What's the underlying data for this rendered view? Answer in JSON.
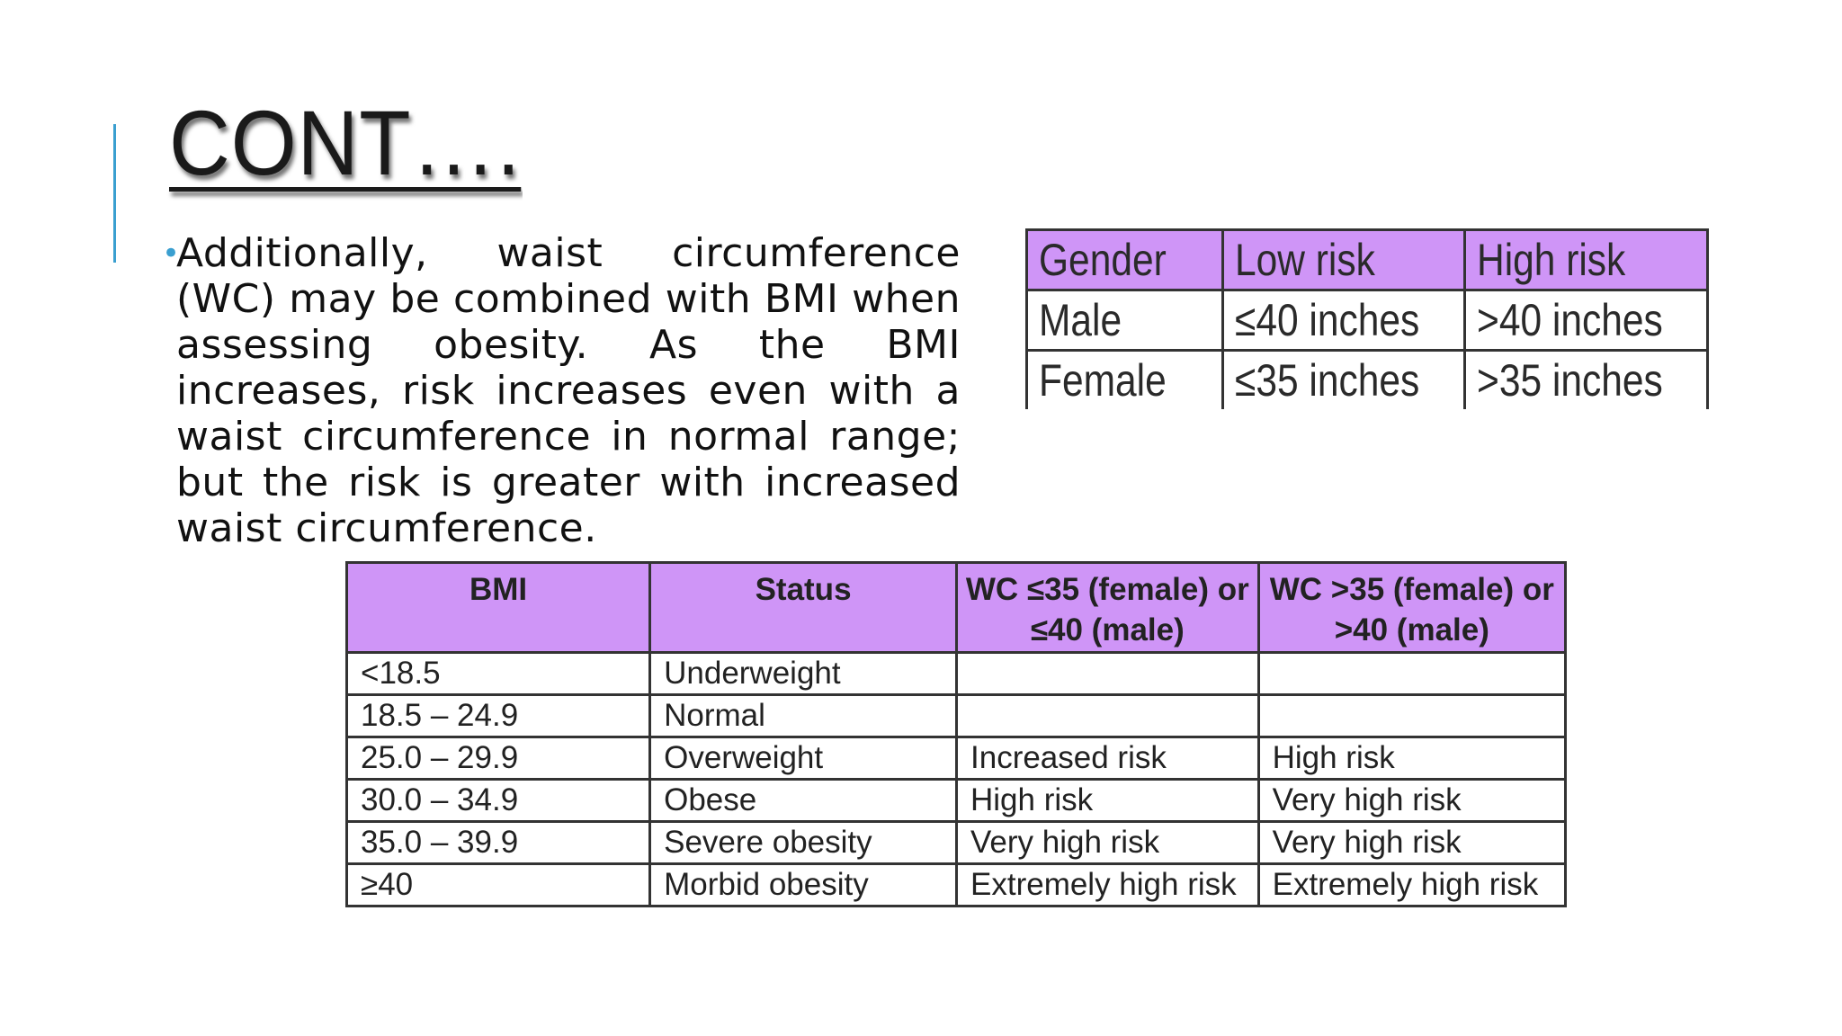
{
  "slide": {
    "title": "CONT….",
    "bullet": "Additionally, waist circumference (WC) may be combined with BMI when assessing obesity. As the BMI increases, risk increases even with a waist circumference in normal range; but the risk is greater with increased waist circumference."
  },
  "gender_table": {
    "headers": [
      "Gender",
      "Low risk",
      "High risk"
    ],
    "rows": [
      [
        "Male",
        "≤40 inches",
        ">40 inches"
      ],
      [
        "Female",
        "≤35 inches",
        ">35 inches"
      ]
    ]
  },
  "bmi_table": {
    "headers": [
      "BMI",
      "Status",
      "WC ≤35 (female) or ≤40 (male)",
      "WC >35 (female) or >40 (male)"
    ],
    "rows": [
      [
        "<18.5",
        "Underweight",
        "",
        ""
      ],
      [
        "18.5 – 24.9",
        "Normal",
        "",
        ""
      ],
      [
        "25.0 – 29.9",
        "Overweight",
        "Increased risk",
        "High risk"
      ],
      [
        "30.0 – 34.9",
        "Obese",
        "High risk",
        "Very high risk"
      ],
      [
        "35.0 – 39.9",
        "Severe obesity",
        "Very high risk",
        "Very high risk"
      ],
      [
        "≥40",
        "Morbid obesity",
        "Extremely high risk",
        "Extremely high risk"
      ]
    ]
  },
  "colors": {
    "accent": "#3a9fd0",
    "header_fill": "#cf95f7"
  }
}
